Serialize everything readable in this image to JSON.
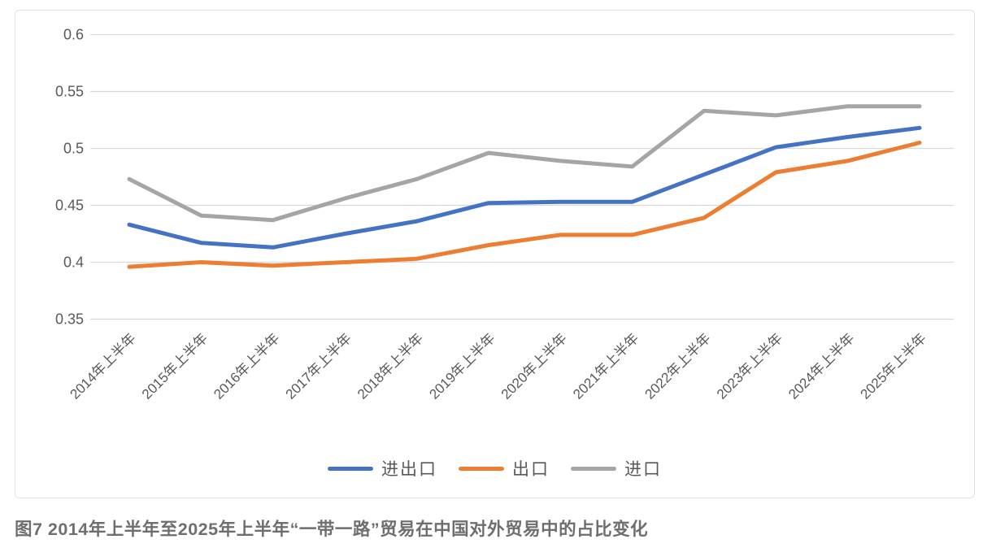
{
  "figure": {
    "caption": "图7  2014年上半年至2025年上半年“一带一路”贸易在中国对外贸易中的占比变化"
  },
  "chart_data": {
    "type": "line",
    "title": "",
    "xlabel": "",
    "ylabel": "",
    "categories": [
      "2014年上半年",
      "2015年上半年",
      "2016年上半年",
      "2017年上半年",
      "2018年上半年",
      "2019年上半年",
      "2020年上半年",
      "2021年上半年",
      "2022年上半年",
      "2023年上半年",
      "2024年上半年",
      "2025年上半年"
    ],
    "series": [
      {
        "name": "进出口",
        "color": "#4472C4",
        "values": [
          0.433,
          0.417,
          0.413,
          0.425,
          0.436,
          0.452,
          0.453,
          0.453,
          0.477,
          0.501,
          0.51,
          0.518
        ]
      },
      {
        "name": "出口",
        "color": "#ED7D31",
        "values": [
          0.396,
          0.4,
          0.397,
          0.4,
          0.403,
          0.415,
          0.424,
          0.424,
          0.439,
          0.479,
          0.489,
          0.505
        ]
      },
      {
        "name": "进口",
        "color": "#A5A5A5",
        "values": [
          0.473,
          0.441,
          0.437,
          0.456,
          0.473,
          0.496,
          0.489,
          0.484,
          0.533,
          0.529,
          0.537,
          0.537
        ]
      }
    ],
    "ylim": [
      0.35,
      0.6
    ],
    "yticks": [
      "0.6",
      "0.55",
      "0.5",
      "0.45",
      "0.4",
      "0.35"
    ],
    "grid": true,
    "legend_position": "bottom",
    "colors": {
      "gridline": "#d9d9d9",
      "axis_text": "#595959",
      "caption_text": "#6e6e6e",
      "card_border": "#e2e2e2"
    }
  }
}
